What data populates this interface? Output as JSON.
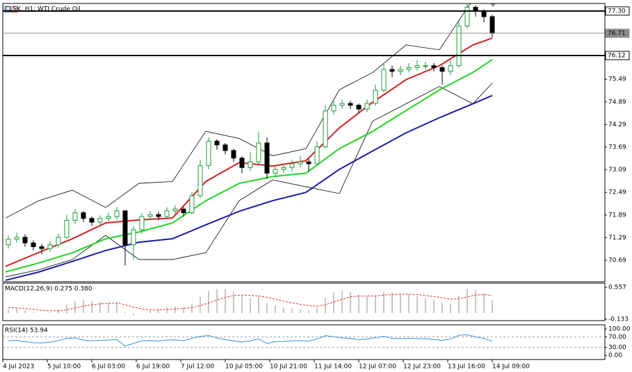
{
  "chart_data": [
    {
      "type": "candlestick",
      "title": "CLSK, H1:  WTI Crude Oil",
      "x": [
        2,
        5,
        8,
        11,
        14,
        17,
        20,
        23,
        26,
        29,
        32,
        35,
        38,
        41,
        44,
        47,
        50,
        53,
        56,
        59,
        62,
        65,
        68,
        71,
        74,
        77,
        80,
        83,
        86,
        89,
        92,
        95,
        98,
        101,
        104,
        107,
        110,
        113,
        116,
        119,
        122,
        125,
        128,
        131,
        134,
        137,
        140,
        143,
        146,
        149,
        152,
        155,
        158,
        161,
        164,
        167,
        170,
        173,
        176
      ],
      "ohlc": [
        [
          71.1,
          71.35,
          71.0,
          71.25
        ],
        [
          71.25,
          71.42,
          71.15,
          71.3
        ],
        [
          71.3,
          71.38,
          71.05,
          71.15
        ],
        [
          71.15,
          71.22,
          70.95,
          71.05
        ],
        [
          71.05,
          71.12,
          70.85,
          71.0
        ],
        [
          71.0,
          71.2,
          70.92,
          71.1
        ],
        [
          71.1,
          71.4,
          71.02,
          71.3
        ],
        [
          71.3,
          71.9,
          71.25,
          71.75
        ],
        [
          71.75,
          72.05,
          71.65,
          71.95
        ],
        [
          71.95,
          72.0,
          71.7,
          71.8
        ],
        [
          71.8,
          71.85,
          71.6,
          71.7
        ],
        [
          71.7,
          71.88,
          71.62,
          71.8
        ],
        [
          71.8,
          71.95,
          71.72,
          71.85
        ],
        [
          71.85,
          72.1,
          71.75,
          72.0
        ],
        [
          72.0,
          72.02,
          70.55,
          71.1
        ],
        [
          71.1,
          71.6,
          70.7,
          71.5
        ],
        [
          71.5,
          71.95,
          71.4,
          71.85
        ],
        [
          71.85,
          72.0,
          71.78,
          71.9
        ],
        [
          71.9,
          71.98,
          71.75,
          71.85
        ],
        [
          71.85,
          72.1,
          71.78,
          72.0
        ],
        [
          72.0,
          72.15,
          71.9,
          72.05
        ],
        [
          72.05,
          72.1,
          71.85,
          71.95
        ],
        [
          71.95,
          72.5,
          71.9,
          72.4
        ],
        [
          72.4,
          73.35,
          72.35,
          73.2
        ],
        [
          73.2,
          73.95,
          73.1,
          73.85
        ],
        [
          73.85,
          73.9,
          73.62,
          73.75
        ],
        [
          73.75,
          73.8,
          73.5,
          73.6
        ],
        [
          73.6,
          73.65,
          73.3,
          73.4
        ],
        [
          73.4,
          73.45,
          73.0,
          73.15
        ],
        [
          73.15,
          73.55,
          73.05,
          73.3
        ],
        [
          73.3,
          74.1,
          73.2,
          73.8
        ],
        [
          73.8,
          73.95,
          72.85,
          73.0
        ],
        [
          73.0,
          73.2,
          72.9,
          73.1
        ],
        [
          73.1,
          73.25,
          73.0,
          73.15
        ],
        [
          73.15,
          73.35,
          73.05,
          73.25
        ],
        [
          73.25,
          73.45,
          73.15,
          73.3
        ],
        [
          73.3,
          73.38,
          73.05,
          73.25
        ],
        [
          73.25,
          73.85,
          73.2,
          73.7
        ],
        [
          73.7,
          74.8,
          73.65,
          74.65
        ],
        [
          74.65,
          74.92,
          74.55,
          74.8
        ],
        [
          74.8,
          74.95,
          74.7,
          74.85
        ],
        [
          74.85,
          74.92,
          74.7,
          74.8
        ],
        [
          74.8,
          74.85,
          74.6,
          74.7
        ],
        [
          74.7,
          74.95,
          74.62,
          74.85
        ],
        [
          74.85,
          75.35,
          74.78,
          75.2
        ],
        [
          75.2,
          75.9,
          75.15,
          75.75
        ],
        [
          75.75,
          75.85,
          75.55,
          75.7
        ],
        [
          75.7,
          75.85,
          75.6,
          75.75
        ],
        [
          75.75,
          75.92,
          75.68,
          75.8
        ],
        [
          75.8,
          76.0,
          75.72,
          75.85
        ],
        [
          75.85,
          75.95,
          75.75,
          75.85
        ],
        [
          75.85,
          75.92,
          75.7,
          75.8
        ],
        [
          75.8,
          75.85,
          75.35,
          75.7
        ],
        [
          75.7,
          76.0,
          75.6,
          75.85
        ],
        [
          75.85,
          77.05,
          75.8,
          76.9
        ],
        [
          76.9,
          77.6,
          76.85,
          77.4
        ],
        [
          77.4,
          77.45,
          77.15,
          77.3
        ],
        [
          77.3,
          77.35,
          77.0,
          77.15
        ],
        [
          77.15,
          77.2,
          76.6,
          76.71
        ]
      ],
      "up_color": "#1f9a3a",
      "down_color": "#000000",
      "line_x": [
        1,
        13,
        25,
        37,
        49,
        61,
        73,
        85,
        97,
        109,
        121,
        133,
        145,
        157,
        169,
        176
      ],
      "lines": [
        {
          "color": "#000000",
          "width": 0.8,
          "values": [
            71.81,
            72.27,
            72.55,
            72.09,
            72.73,
            72.78,
            74.11,
            73.92,
            73.46,
            73.65,
            75.21,
            75.67,
            76.4,
            76.27,
            77.6,
            77.8
          ]
        },
        {
          "color": "#000000",
          "width": 0.8,
          "values": [
            70.25,
            70.44,
            70.71,
            71.35,
            70.71,
            70.71,
            70.89,
            72.27,
            72.82,
            72.64,
            72.46,
            74.38,
            74.84,
            75.3,
            74.84,
            75.39
          ]
        },
        {
          "color": "#1a1aa8",
          "width": 2,
          "values": [
            70.16,
            70.38,
            70.66,
            70.95,
            71.17,
            71.26,
            71.63,
            71.99,
            72.27,
            72.49,
            73.1,
            73.59,
            74.07,
            74.47,
            74.84,
            75.06
          ]
        },
        {
          "color": "#22d322",
          "width": 2,
          "values": [
            70.38,
            70.62,
            70.89,
            71.26,
            71.44,
            71.68,
            72.27,
            72.73,
            72.91,
            73.0,
            73.65,
            74.11,
            74.66,
            75.21,
            75.67,
            76.01
          ]
        },
        {
          "color": "#d42020",
          "width": 2,
          "values": [
            70.53,
            70.9,
            71.26,
            71.68,
            71.76,
            71.81,
            72.78,
            73.28,
            73.19,
            73.33,
            74.2,
            74.88,
            75.48,
            75.85,
            76.4,
            76.58
          ]
        }
      ],
      "xlim": [
        0,
        216.5
      ],
      "ylim": [
        70.12,
        77.5
      ],
      "yticks": [
        70.69,
        71.29,
        71.89,
        72.49,
        73.09,
        73.69,
        74.29,
        74.89,
        75.49
      ],
      "levels": [
        {
          "value": 77.3,
          "label": "77.30",
          "color": "#000000"
        },
        {
          "value": 76.71,
          "label": "76.71",
          "color": "#8c8c8c"
        },
        {
          "value": 76.12,
          "label": "76.12",
          "color": "#000000"
        }
      ],
      "xticks": [
        {
          "value": 0,
          "label": "4 Jul 2023"
        },
        {
          "value": 16,
          "label": "5 Jul 10:00"
        },
        {
          "value": 32,
          "label": "6 Jul 03:00"
        },
        {
          "value": 48,
          "label": "6 Jul 19:00"
        },
        {
          "value": 64,
          "label": "7 Jul 12:00"
        },
        {
          "value": 80,
          "label": "10 Jul 05:00"
        },
        {
          "value": 96,
          "label": "10 Jul 21:00"
        },
        {
          "value": 112,
          "label": "11 Jul 14:00"
        },
        {
          "value": 128,
          "label": "12 Jul 07:00"
        },
        {
          "value": 144,
          "label": "12 Jul 23:00"
        },
        {
          "value": 160,
          "label": "13 Jul 16:00"
        },
        {
          "value": 176,
          "label": "14 Jul 09:00"
        }
      ]
    },
    {
      "type": "macd",
      "title": "MACD(12,26,9) 0.275 0.380",
      "x": [
        2,
        5,
        8,
        11,
        14,
        17,
        20,
        23,
        26,
        29,
        32,
        35,
        38,
        41,
        44,
        47,
        50,
        53,
        56,
        59,
        62,
        65,
        68,
        71,
        74,
        77,
        80,
        83,
        86,
        89,
        92,
        95,
        98,
        101,
        104,
        107,
        110,
        113,
        116,
        119,
        122,
        125,
        128,
        131,
        134,
        137,
        140,
        143,
        146,
        149,
        152,
        155,
        158,
        161,
        164,
        167,
        170,
        173,
        176
      ],
      "bars": {
        "color": "#b4b4b4",
        "values": [
          0.08,
          0.1,
          0.06,
          0.02,
          0.0,
          0.02,
          0.08,
          0.18,
          0.26,
          0.28,
          0.25,
          0.24,
          0.22,
          0.22,
          0.02,
          -0.05,
          0.0,
          0.05,
          0.08,
          0.12,
          0.14,
          0.13,
          0.2,
          0.35,
          0.48,
          0.52,
          0.52,
          0.46,
          0.38,
          0.33,
          0.35,
          0.22,
          0.16,
          0.12,
          0.1,
          0.08,
          0.06,
          0.12,
          0.32,
          0.45,
          0.48,
          0.46,
          0.4,
          0.36,
          0.38,
          0.46,
          0.45,
          0.42,
          0.4,
          0.36,
          0.32,
          0.28,
          0.22,
          0.2,
          0.38,
          0.52,
          0.5,
          0.42,
          0.275
        ]
      },
      "signal": {
        "color": "#e03030",
        "values": [
          0.12,
          0.11,
          0.1,
          0.08,
          0.06,
          0.05,
          0.05,
          0.07,
          0.11,
          0.15,
          0.18,
          0.2,
          0.21,
          0.22,
          0.18,
          0.13,
          0.09,
          0.07,
          0.07,
          0.08,
          0.09,
          0.1,
          0.12,
          0.16,
          0.22,
          0.28,
          0.34,
          0.38,
          0.39,
          0.38,
          0.37,
          0.34,
          0.3,
          0.26,
          0.22,
          0.19,
          0.16,
          0.15,
          0.18,
          0.24,
          0.3,
          0.35,
          0.37,
          0.37,
          0.37,
          0.39,
          0.4,
          0.41,
          0.41,
          0.4,
          0.38,
          0.36,
          0.33,
          0.3,
          0.31,
          0.35,
          0.39,
          0.4,
          0.38
        ]
      },
      "xlim": [
        0,
        216.5
      ],
      "ylim": [
        -0.163,
        0.647
      ],
      "yticks": [
        -0.133,
        0.557
      ]
    },
    {
      "type": "line",
      "title": "RSI(14) 53.94",
      "x": [
        2,
        5,
        8,
        11,
        14,
        17,
        20,
        23,
        26,
        29,
        32,
        35,
        38,
        41,
        44,
        47,
        50,
        53,
        56,
        59,
        62,
        65,
        68,
        71,
        74,
        77,
        80,
        83,
        86,
        89,
        92,
        95,
        98,
        101,
        104,
        107,
        110,
        113,
        116,
        119,
        122,
        125,
        128,
        131,
        134,
        137,
        140,
        143,
        146,
        149,
        152,
        155,
        158,
        161,
        164,
        167,
        170,
        173,
        176
      ],
      "series": [
        {
          "color": "#3a8fd0",
          "values": [
            55,
            57,
            52,
            48,
            47,
            50,
            56,
            64,
            66,
            58,
            55,
            57,
            58,
            60,
            35,
            45,
            55,
            56,
            54,
            58,
            59,
            55,
            65,
            72,
            75,
            66,
            60,
            55,
            50,
            55,
            62,
            45,
            52,
            53,
            55,
            56,
            54,
            62,
            75,
            70,
            66,
            64,
            60,
            62,
            67,
            72,
            64,
            63,
            64,
            63,
            63,
            60,
            57,
            62,
            76,
            78,
            70,
            64,
            53.94
          ]
        }
      ],
      "xlim": [
        0,
        216.5
      ],
      "ylim": [
        -15.8,
        115.8
      ],
      "yticks": [
        {
          "value": 0,
          "label": "0.00"
        },
        {
          "value": 30,
          "label": "30.00"
        },
        {
          "value": 70,
          "label": "70.00"
        },
        {
          "value": 100,
          "label": "100.00"
        }
      ]
    }
  ]
}
